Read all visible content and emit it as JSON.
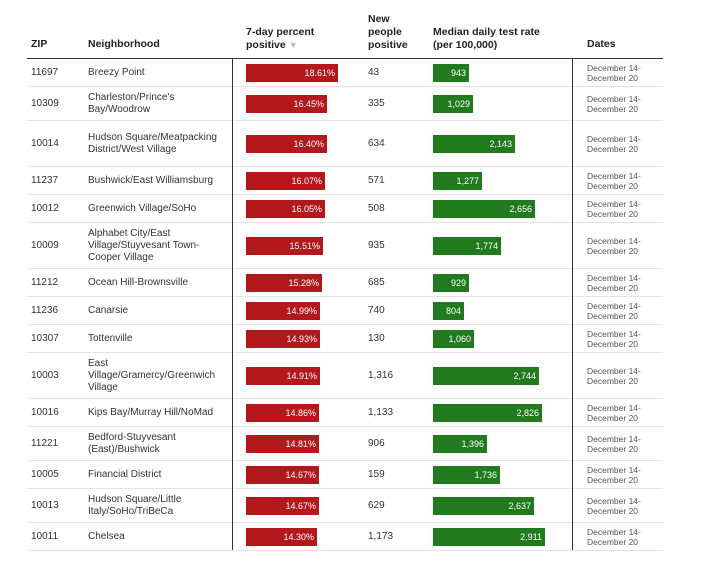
{
  "table": {
    "headers": {
      "zip": "ZIP",
      "neighborhood": "Neighborhood",
      "pct_line1": "7-day percent",
      "pct_line2": "positive",
      "new_line1": "New",
      "new_line2": "people",
      "new_line3": "positive",
      "rate_line1": "Median daily test rate",
      "rate_line2": "(per 100,000)",
      "dates": "Dates"
    },
    "sort_icon": "sort-down-icon",
    "colors": {
      "positive_bar": "#b3181d",
      "rate_bar": "#217a1d"
    }
  },
  "chart_data": {
    "type": "table",
    "columns": [
      "ZIP",
      "Neighborhood",
      "7-day percent positive",
      "New people positive",
      "Median daily test rate (per 100,000)",
      "Dates"
    ],
    "pct_max": 18.61,
    "rate_max": 2911,
    "rows": [
      {
        "zip": "11697",
        "neighborhood": "Breezy Point",
        "pct": 18.61,
        "pct_label": "18.61%",
        "new": "43",
        "rate": 943,
        "rate_label": "943",
        "dates_1": "December 14-",
        "dates_2": "December 20"
      },
      {
        "zip": "10309",
        "neighborhood": "Charleston/Prince's Bay/Woodrow",
        "pct": 16.45,
        "pct_label": "16.45%",
        "new": "335",
        "rate": 1029,
        "rate_label": "1,029",
        "dates_1": "December 14-",
        "dates_2": "December 20"
      },
      {
        "zip": "10014",
        "neighborhood": "Hudson Square/Meatpacking District/West Village",
        "pct": 16.4,
        "pct_label": "16.40%",
        "new": "634",
        "rate": 2143,
        "rate_label": "2,143",
        "dates_1": "December 14-",
        "dates_2": "December 20"
      },
      {
        "zip": "11237",
        "neighborhood": "Bushwick/East Williamsburg",
        "pct": 16.07,
        "pct_label": "16.07%",
        "new": "571",
        "rate": 1277,
        "rate_label": "1,277",
        "dates_1": "December 14-",
        "dates_2": "December 20"
      },
      {
        "zip": "10012",
        "neighborhood": "Greenwich Village/SoHo",
        "pct": 16.05,
        "pct_label": "16.05%",
        "new": "508",
        "rate": 2656,
        "rate_label": "2,656",
        "dates_1": "December 14-",
        "dates_2": "December 20"
      },
      {
        "zip": "10009",
        "neighborhood": "Alphabet City/East Village/Stuyvesant Town-Cooper Village",
        "pct": 15.51,
        "pct_label": "15.51%",
        "new": "935",
        "rate": 1774,
        "rate_label": "1,774",
        "dates_1": "December 14-",
        "dates_2": "December 20"
      },
      {
        "zip": "11212",
        "neighborhood": "Ocean Hill-Brownsville",
        "pct": 15.28,
        "pct_label": "15.28%",
        "new": "685",
        "rate": 929,
        "rate_label": "929",
        "dates_1": "December 14-",
        "dates_2": "December 20"
      },
      {
        "zip": "11236",
        "neighborhood": "Canarsie",
        "pct": 14.99,
        "pct_label": "14.99%",
        "new": "740",
        "rate": 804,
        "rate_label": "804",
        "dates_1": "December 14-",
        "dates_2": "December 20"
      },
      {
        "zip": "10307",
        "neighborhood": "Tottenville",
        "pct": 14.93,
        "pct_label": "14.93%",
        "new": "130",
        "rate": 1060,
        "rate_label": "1,060",
        "dates_1": "December 14-",
        "dates_2": "December 20"
      },
      {
        "zip": "10003",
        "neighborhood": "East Village/Gramercy/Greenwich Village",
        "pct": 14.91,
        "pct_label": "14.91%",
        "new": "1,316",
        "rate": 2744,
        "rate_label": "2,744",
        "dates_1": "December 14-",
        "dates_2": "December 20"
      },
      {
        "zip": "10016",
        "neighborhood": "Kips Bay/Murray Hill/NoMad",
        "pct": 14.86,
        "pct_label": "14.86%",
        "new": "1,133",
        "rate": 2826,
        "rate_label": "2,826",
        "dates_1": "December 14-",
        "dates_2": "December 20"
      },
      {
        "zip": "11221",
        "neighborhood": "Bedford-Stuyvesant (East)/Bushwick",
        "pct": 14.81,
        "pct_label": "14.81%",
        "new": "906",
        "rate": 1396,
        "rate_label": "1,396",
        "dates_1": "December 14-",
        "dates_2": "December 20"
      },
      {
        "zip": "10005",
        "neighborhood": "Financial District",
        "pct": 14.67,
        "pct_label": "14.67%",
        "new": "159",
        "rate": 1736,
        "rate_label": "1,736",
        "dates_1": "December 14-",
        "dates_2": "December 20"
      },
      {
        "zip": "10013",
        "neighborhood": "Hudson Square/Little Italy/SoHo/TriBeCa",
        "pct": 14.67,
        "pct_label": "14.67%",
        "new": "629",
        "rate": 2637,
        "rate_label": "2,637",
        "dates_1": "December 14-",
        "dates_2": "December 20"
      },
      {
        "zip": "10011",
        "neighborhood": "Chelsea",
        "pct": 14.3,
        "pct_label": "14.30%",
        "new": "1,173",
        "rate": 2911,
        "rate_label": "2,911",
        "dates_1": "December 14-",
        "dates_2": "December 20"
      }
    ]
  }
}
